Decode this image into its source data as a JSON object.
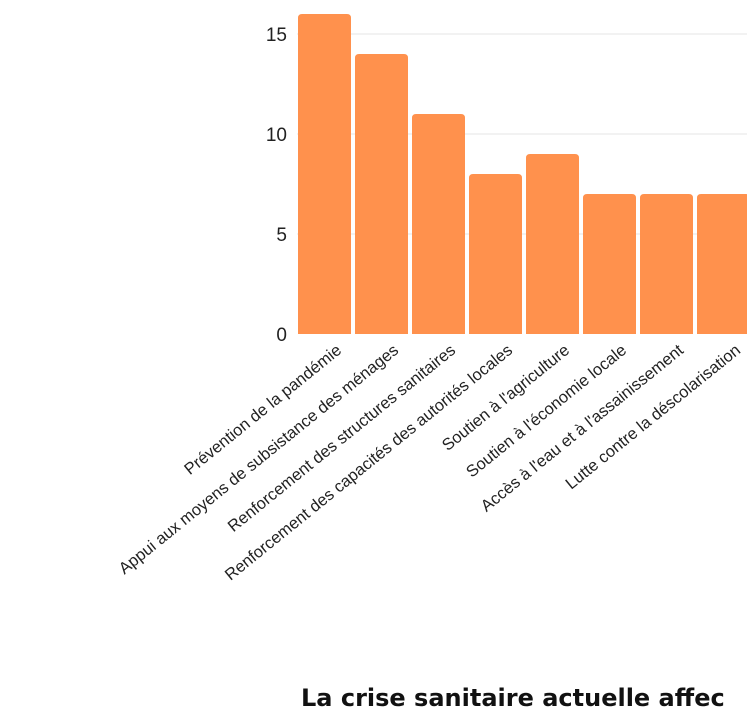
{
  "colors": {
    "bar": "#ff914d",
    "grid": "#e6e6e6",
    "text": "#222222"
  },
  "chart_data": {
    "type": "bar",
    "categories": [
      "Prévention de la pandémie",
      "Appui aux moyens de subsistance des ménages",
      "Renforcement des structures sanitaires",
      "Renforcement des capacités des autorités locales",
      "Soutien à l'agriculture",
      "Soutien à l'économie locale",
      "Accès à l'eau et à l'assainissement",
      "Lutte contre la déscolarisation"
    ],
    "values": [
      16,
      14,
      11,
      8,
      9,
      7,
      7,
      7
    ],
    "yticks": [
      0,
      5,
      10,
      15
    ],
    "ylim": [
      0,
      16
    ],
    "grid": true,
    "title": "",
    "xlabel": "",
    "ylabel": ""
  },
  "footer": {
    "text": "La crise sanitaire actuelle affec"
  }
}
